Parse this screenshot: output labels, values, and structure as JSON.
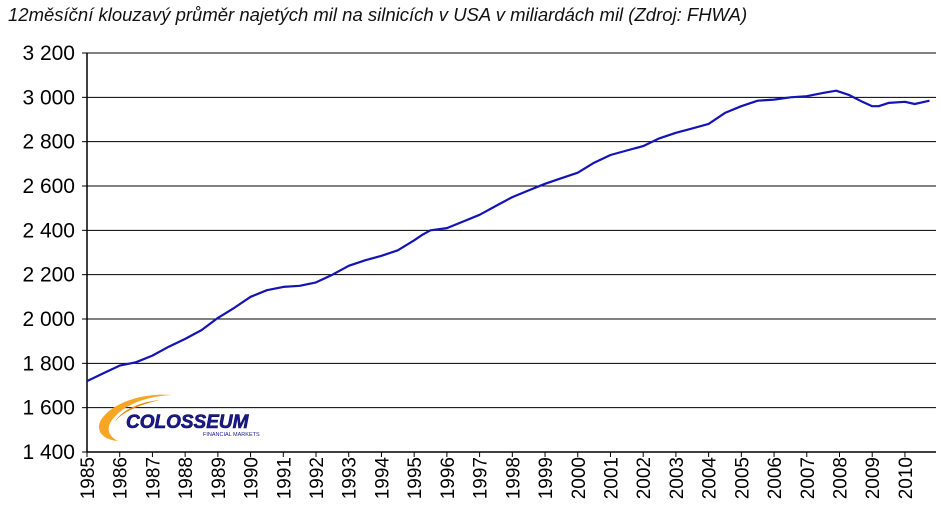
{
  "chart_data": {
    "type": "line",
    "title": "12měsíční klouzavý průměr najetých mil na silnicích v USA v miliardách mil (Zdroj: FHWA)",
    "xlabel": "",
    "ylabel": "",
    "xlim": [
      1985,
      2010.95
    ],
    "ylim": [
      1400,
      3200
    ],
    "y_ticks": [
      1400,
      1600,
      1800,
      2000,
      2200,
      2400,
      2600,
      2800,
      3000,
      3200
    ],
    "y_tick_labels": [
      "1 400",
      "1 600",
      "1 800",
      "2 000",
      "2 200",
      "2 400",
      "2 600",
      "2 800",
      "3 000",
      "3 200"
    ],
    "x_tick_labels": [
      "1985",
      "1986",
      "1987",
      "1988",
      "1989",
      "1990",
      "1991",
      "1992",
      "1993",
      "1994",
      "1995",
      "1996",
      "1997",
      "1998",
      "1999",
      "2000",
      "2001",
      "2002",
      "2003",
      "2004",
      "2005",
      "2006",
      "2007",
      "2008",
      "2009",
      "2010"
    ],
    "grid": "horizontal",
    "line_color": "#1414B4",
    "series": [
      {
        "x": [
          1985.0,
          1985.5,
          1986.0,
          1986.5,
          1987.0,
          1987.5,
          1988.0,
          1988.5,
          1989.0,
          1989.5,
          1990.0,
          1990.5,
          1991.0,
          1991.5,
          1992.0,
          1992.5,
          1993.0,
          1993.5,
          1994.0,
          1994.5,
          1995.0,
          1995.25,
          1995.5,
          1996.0,
          1996.5,
          1997.0,
          1997.5,
          1998.0,
          1998.5,
          1999.0,
          1999.5,
          2000.0,
          2000.5,
          2001.0,
          2001.5,
          2002.0,
          2002.5,
          2003.0,
          2003.5,
          2004.0,
          2004.5,
          2005.0,
          2005.5,
          2006.0,
          2006.5,
          2007.0,
          2007.5,
          2007.9,
          2008.3,
          2008.7,
          2009.0,
          2009.2,
          2009.5,
          2010.0,
          2010.3,
          2010.6,
          2010.75
        ],
        "values": [
          1720,
          1755,
          1790,
          1805,
          1835,
          1875,
          1910,
          1950,
          2005,
          2050,
          2100,
          2130,
          2145,
          2150,
          2165,
          2200,
          2240,
          2265,
          2285,
          2310,
          2355,
          2380,
          2400,
          2410,
          2440,
          2470,
          2510,
          2550,
          2580,
          2610,
          2635,
          2660,
          2705,
          2740,
          2760,
          2780,
          2815,
          2840,
          2860,
          2880,
          2930,
          2960,
          2985,
          2990,
          3000,
          3005,
          3020,
          3030,
          3010,
          2980,
          2960,
          2960,
          2975,
          2980,
          2970,
          2980,
          2985
        ]
      }
    ]
  },
  "logo": {
    "name": "COLOSSEUM",
    "subtitle": "FINANCIAL MARKETS"
  }
}
